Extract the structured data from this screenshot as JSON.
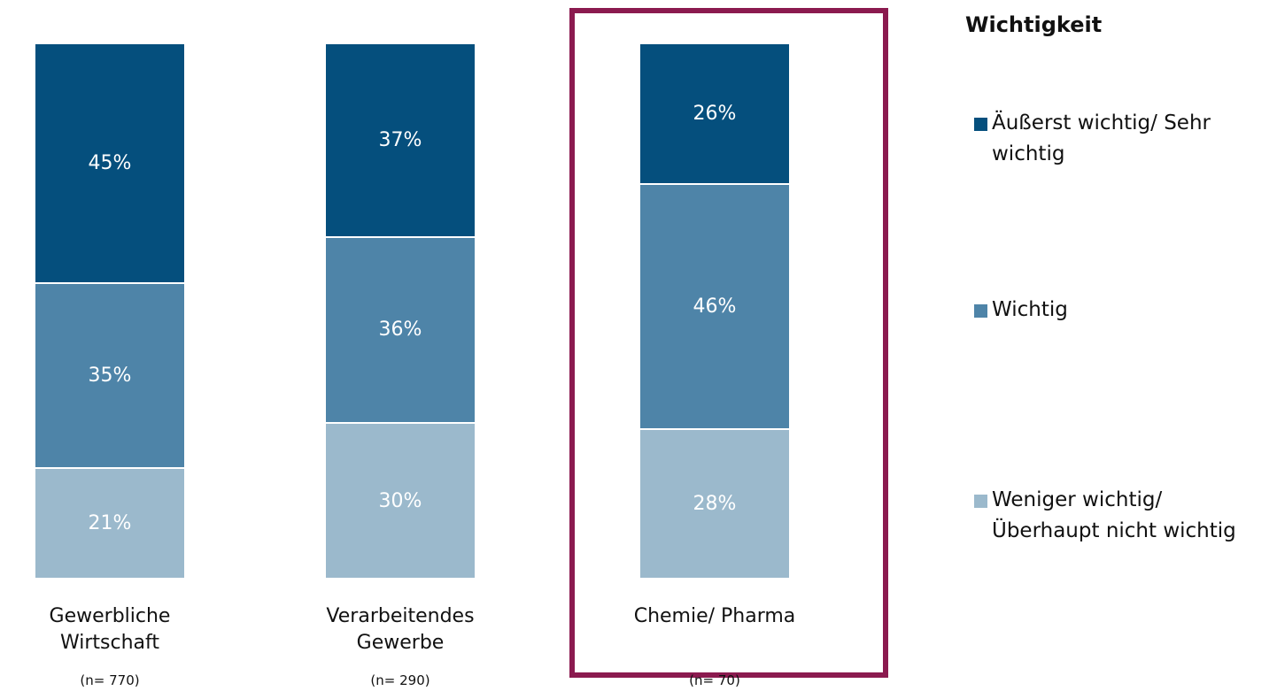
{
  "chart_data": {
    "type": "bar",
    "stacked": true,
    "normalized": true,
    "categories": [
      "Gewerbliche Wirtschaft",
      "Verarbeitendes Gewerbe",
      "Chemie/ Pharma"
    ],
    "sample_sizes": [
      "(n= 770)",
      "(n= 290)",
      "(n= 70)"
    ],
    "legend_title": "Wichtigkeit",
    "series": [
      {
        "name": "Weniger wichtig/ Überhaupt nicht wichtig",
        "color": "#9bb9cc",
        "values": [
          21,
          30,
          28
        ],
        "value_labels": [
          "21%",
          "30%",
          "28%"
        ]
      },
      {
        "name": "Wichtig",
        "color": "#4e84a8",
        "values": [
          35,
          36,
          46
        ],
        "value_labels": [
          "35%",
          "36%",
          "46%"
        ]
      },
      {
        "name": "Äußerst wichtig/ Sehr wichtig",
        "color": "#054f7d",
        "values": [
          45,
          37,
          26
        ],
        "value_labels": [
          "45%",
          "37%",
          "26%"
        ]
      }
    ]
  }
}
